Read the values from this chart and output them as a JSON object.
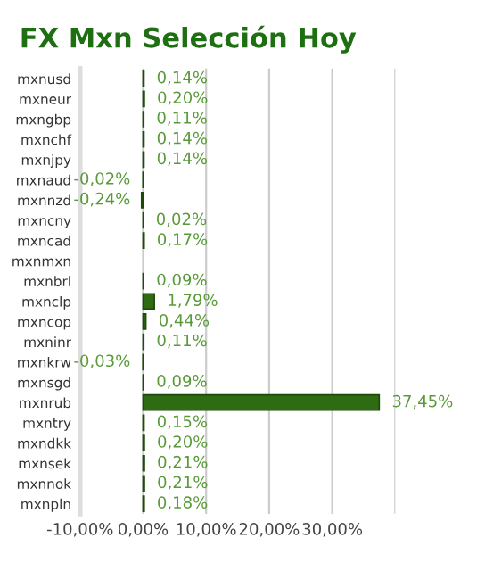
{
  "chart_data": {
    "type": "bar",
    "orientation": "horizontal",
    "title": "FX Mxn Selección Hoy",
    "categories": [
      "mxnusd",
      "mxneur",
      "mxngbp",
      "mxnchf",
      "mxnjpy",
      "mxnaud",
      "mxnnzd",
      "mxncny",
      "mxncad",
      "mxnmxn",
      "mxnbrl",
      "mxnclp",
      "mxncop",
      "mxninr",
      "mxnkrw",
      "mxnsgd",
      "mxnrub",
      "mxntry",
      "mxndkk",
      "mxnsek",
      "mxnnok",
      "mxnpln"
    ],
    "values": [
      0.14,
      0.2,
      0.11,
      0.14,
      0.14,
      -0.02,
      -0.24,
      0.02,
      0.17,
      null,
      0.09,
      1.79,
      0.44,
      0.11,
      -0.03,
      0.09,
      37.45,
      0.15,
      0.2,
      0.21,
      0.21,
      0.18
    ],
    "value_labels": [
      "0,14%",
      "0,20%",
      "0,11%",
      "0,14%",
      "0,14%",
      "-0,02%",
      "-0,24%",
      "0,02%",
      "0,17%",
      null,
      "0,09%",
      "1,79%",
      "0,44%",
      "0,11%",
      "-0,03%",
      "0,09%",
      "37,45%",
      "0,15%",
      "0,20%",
      "0,21%",
      "0,21%",
      "0,18%"
    ],
    "color": "#2e6b12",
    "xlim": [
      -10,
      40
    ],
    "xticks": [
      {
        "value": -10,
        "label": "-10,00%"
      },
      {
        "value": 0,
        "label": "0,00%"
      },
      {
        "value": 10,
        "label": "10,00%"
      },
      {
        "value": 20,
        "label": "20,00%"
      },
      {
        "value": 30,
        "label": "30,00%"
      },
      {
        "value": 40,
        "label": null
      }
    ],
    "grid": "x"
  }
}
